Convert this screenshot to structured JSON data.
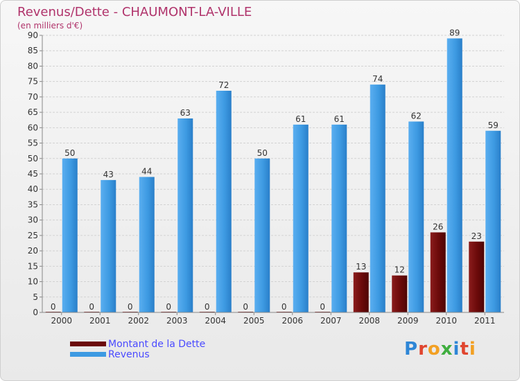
{
  "chart_data": {
    "type": "bar",
    "title": "Revenus/Dette - CHAUMONT-LA-VILLE",
    "subtitle": "(en milliers d'€)",
    "categories": [
      "2000",
      "2001",
      "2002",
      "2003",
      "2004",
      "2005",
      "2006",
      "2007",
      "2008",
      "2009",
      "2010",
      "2011"
    ],
    "series": [
      {
        "name": "Montant de la Dette",
        "color": "#6b0a0a",
        "values": [
          0,
          0,
          0,
          0,
          0,
          0,
          0,
          0,
          13,
          12,
          26,
          23
        ]
      },
      {
        "name": "Revenus",
        "color": "#3d9ae2",
        "values": [
          50,
          43,
          44,
          63,
          72,
          50,
          61,
          61,
          74,
          62,
          89,
          59
        ]
      }
    ],
    "ylim": [
      0,
      90
    ],
    "ytick_step": 5,
    "grid": true,
    "legend_position": "bottom-left"
  },
  "logo": {
    "letters": [
      {
        "char": "P",
        "color": "#2e86d6"
      },
      {
        "char": "r",
        "color": "#e0452f"
      },
      {
        "char": "o",
        "color": "#f2a023"
      },
      {
        "char": "x",
        "color": "#3fae3f"
      },
      {
        "char": "i",
        "color": "#2e86d6"
      },
      {
        "char": "t",
        "color": "#e0452f"
      },
      {
        "char": "i",
        "color": "#f2a023"
      }
    ]
  }
}
